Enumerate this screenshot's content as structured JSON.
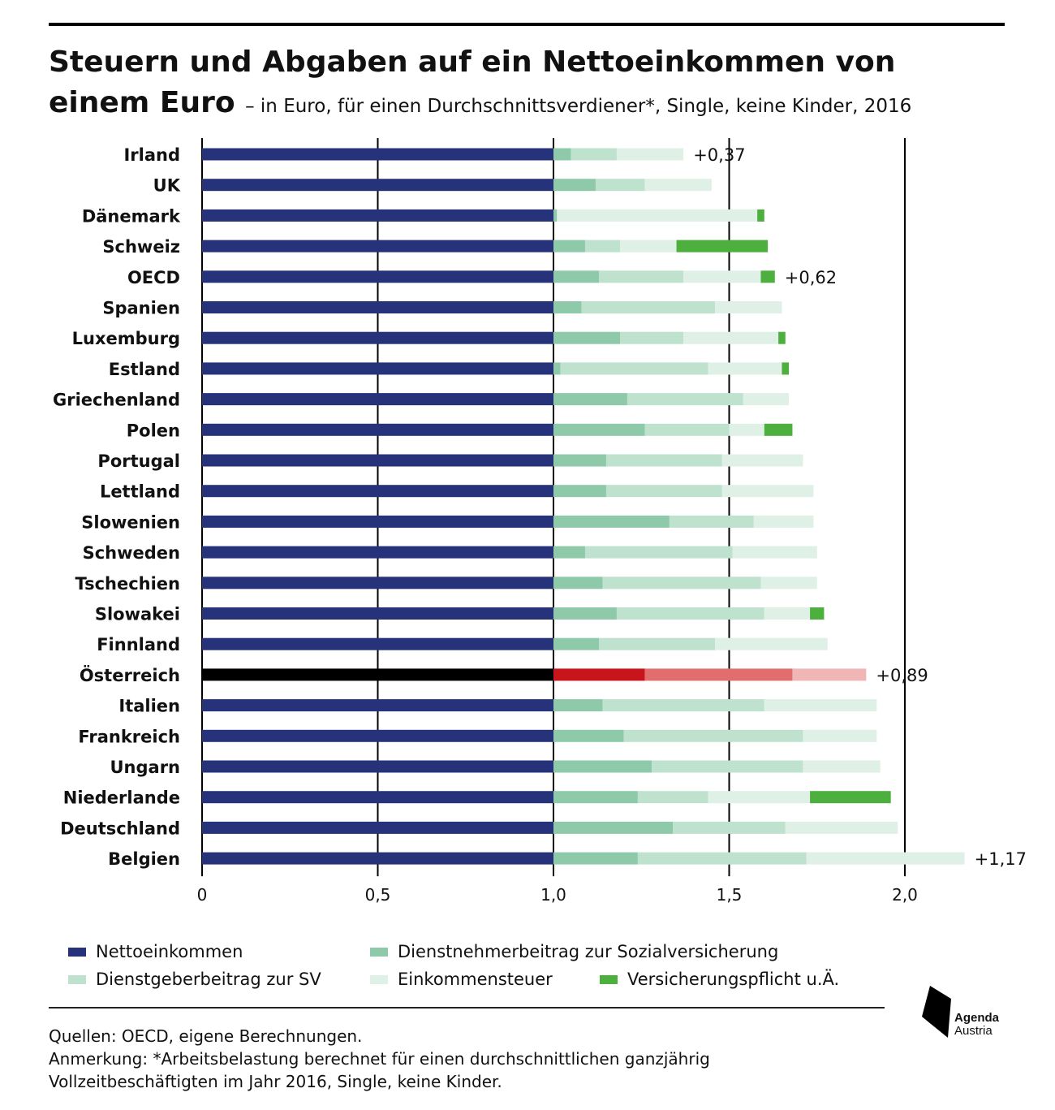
{
  "header": {
    "title_main": "Steuern und Abgaben auf ein Nettoeinkommen von einem Euro",
    "title_sub": "– in Euro, für einen Durchschnittsverdiener*, Single, keine Kinder, 2016"
  },
  "colors": {
    "net": "#26337a",
    "an_sv": "#8ecaa9",
    "ag_sv": "#bfe2cf",
    "est": "#dff0e7",
    "versich": "#4caf3e",
    "austria_net": "#000000",
    "austria_an_sv": "#c8151c",
    "austria_ag_sv": "#e26d6f",
    "austria_est": "#f0b5b5"
  },
  "legend": [
    {
      "key": "net",
      "label": "Nettoeinkommen"
    },
    {
      "key": "an_sv",
      "label": "Dienstnehmerbeitrag zur Sozialversicherung"
    },
    {
      "key": "ag_sv",
      "label": "Dienstgeberbeitrag zur SV"
    },
    {
      "key": "est",
      "label": "Einkommensteuer"
    },
    {
      "key": "versich",
      "label": "Versicherungspflicht u.Ä."
    }
  ],
  "chart_data": {
    "type": "bar",
    "orientation": "horizontal",
    "stacked": true,
    "title": "Steuern und Abgaben auf ein Nettoeinkommen von einem Euro",
    "xlim": [
      0,
      2.2
    ],
    "xticks": [
      0,
      0.5,
      1.0,
      1.5,
      2.0
    ],
    "xtick_labels": [
      "0",
      "0,5",
      "1,0",
      "1,5",
      "2,0"
    ],
    "gridlines": [
      0.5,
      1.0,
      1.5,
      2.0
    ],
    "highlight": "Österreich",
    "categories": [
      "Irland",
      "UK",
      "Dänemark",
      "Schweiz",
      "OECD",
      "Spanien",
      "Luxemburg",
      "Estland",
      "Griechenland",
      "Polen",
      "Portugal",
      "Lettland",
      "Slowenien",
      "Schweden",
      "Tschechien",
      "Slowakei",
      "Finnland",
      "Österreich",
      "Italien",
      "Frankreich",
      "Ungarn",
      "Niederlande",
      "Deutschland",
      "Belgien"
    ],
    "series": [
      {
        "name": "Nettoeinkommen",
        "key": "net",
        "values": [
          1,
          1,
          1,
          1,
          1,
          1,
          1,
          1,
          1,
          1,
          1,
          1,
          1,
          1,
          1,
          1,
          1,
          1,
          1,
          1,
          1,
          1,
          1,
          1
        ]
      },
      {
        "name": "Dienstnehmerbeitrag zur Sozialversicherung",
        "key": "an_sv",
        "values": [
          0.05,
          0.12,
          0.01,
          0.09,
          0.13,
          0.08,
          0.19,
          0.02,
          0.21,
          0.26,
          0.15,
          0.15,
          0.33,
          0.09,
          0.14,
          0.18,
          0.13,
          0.26,
          0.14,
          0.2,
          0.28,
          0.24,
          0.34,
          0.24
        ]
      },
      {
        "name": "Dienstgeberbeitrag zur SV",
        "key": "ag_sv",
        "values": [
          0.13,
          0.14,
          0.0,
          0.1,
          0.24,
          0.38,
          0.18,
          0.42,
          0.33,
          0.24,
          0.33,
          0.33,
          0.24,
          0.42,
          0.45,
          0.42,
          0.33,
          0.42,
          0.46,
          0.51,
          0.43,
          0.2,
          0.32,
          0.48
        ]
      },
      {
        "name": "Einkommensteuer",
        "key": "est",
        "values": [
          0.19,
          0.19,
          0.57,
          0.16,
          0.22,
          0.19,
          0.27,
          0.21,
          0.13,
          0.1,
          0.23,
          0.26,
          0.17,
          0.24,
          0.16,
          0.13,
          0.32,
          0.21,
          0.32,
          0.21,
          0.22,
          0.29,
          0.32,
          0.45
        ]
      },
      {
        "name": "Versicherungspflicht u.Ä.",
        "key": "versich",
        "values": [
          0,
          0,
          0.02,
          0.26,
          0.04,
          0,
          0.02,
          0.02,
          0,
          0.08,
          0,
          0,
          0,
          0,
          0,
          0.04,
          0,
          0,
          0,
          0,
          0,
          0.23,
          0,
          0
        ]
      }
    ],
    "annotations": [
      {
        "category": "Irland",
        "text": "+0,37"
      },
      {
        "category": "OECD",
        "text": "+0,62"
      },
      {
        "category": "Österreich",
        "text": "+0,89"
      },
      {
        "category": "Belgien",
        "text": "+1,17"
      }
    ]
  },
  "footer": {
    "sources": "Quellen: OECD, eigene Berechnungen.",
    "note_line1": "Anmerkung: *Arbeitsbelastung berechnet für einen durchschnittlichen ganzjährig",
    "note_line2": "Vollzeitbeschäftigten im Jahr 2016, Single, keine Kinder.",
    "logo_line1": "Agenda",
    "logo_line2": "Austria"
  }
}
